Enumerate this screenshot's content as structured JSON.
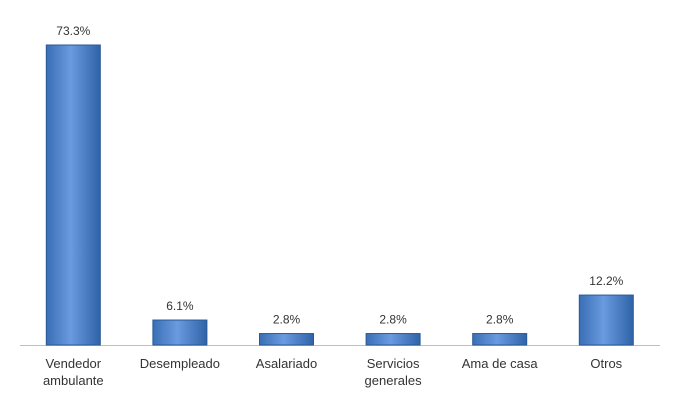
{
  "chart_data": {
    "type": "bar",
    "categories": [
      "Vendedor ambulante",
      "Desempleado",
      "Asalariado",
      "Servicios generales",
      "Ama de casa",
      "Otros"
    ],
    "values": [
      73.3,
      6.1,
      2.8,
      2.8,
      2.8,
      12.2
    ],
    "value_labels": [
      "73.3%",
      "6.1%",
      "2.8%",
      "2.8%",
      "2.8%",
      "12.2%"
    ],
    "color": "#4f81bd"
  }
}
